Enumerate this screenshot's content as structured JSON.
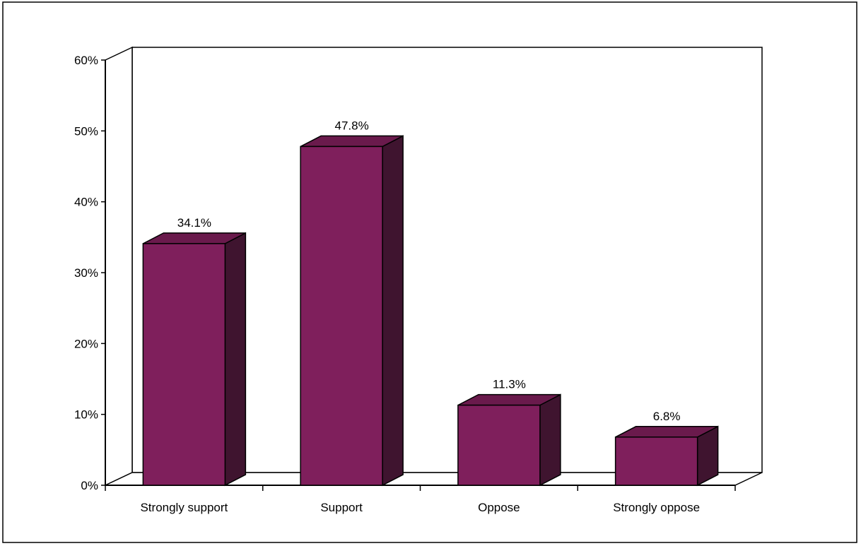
{
  "chart_data": {
    "type": "bar",
    "title": "",
    "xlabel": "",
    "ylabel": "",
    "categories": [
      "Strongly support",
      "Support",
      "Oppose",
      "Strongly oppose"
    ],
    "values": [
      34.1,
      47.8,
      11.3,
      6.8
    ],
    "value_labels": [
      "34.1%",
      "47.8%",
      "11.3%",
      "6.8%"
    ],
    "ylim": [
      0,
      60
    ],
    "yticks": [
      0,
      10,
      20,
      30,
      40,
      50,
      60
    ],
    "ytick_labels": [
      "0%",
      "10%",
      "20%",
      "30%",
      "40%",
      "50%",
      "60%"
    ],
    "grid": false,
    "legend": "none",
    "three_d": true,
    "colors": {
      "bar_front": "#7f1f5c",
      "bar_side": "#3f142f",
      "bar_top": "#6a1a4c",
      "outline": "#000000",
      "background": "#ffffff"
    }
  }
}
